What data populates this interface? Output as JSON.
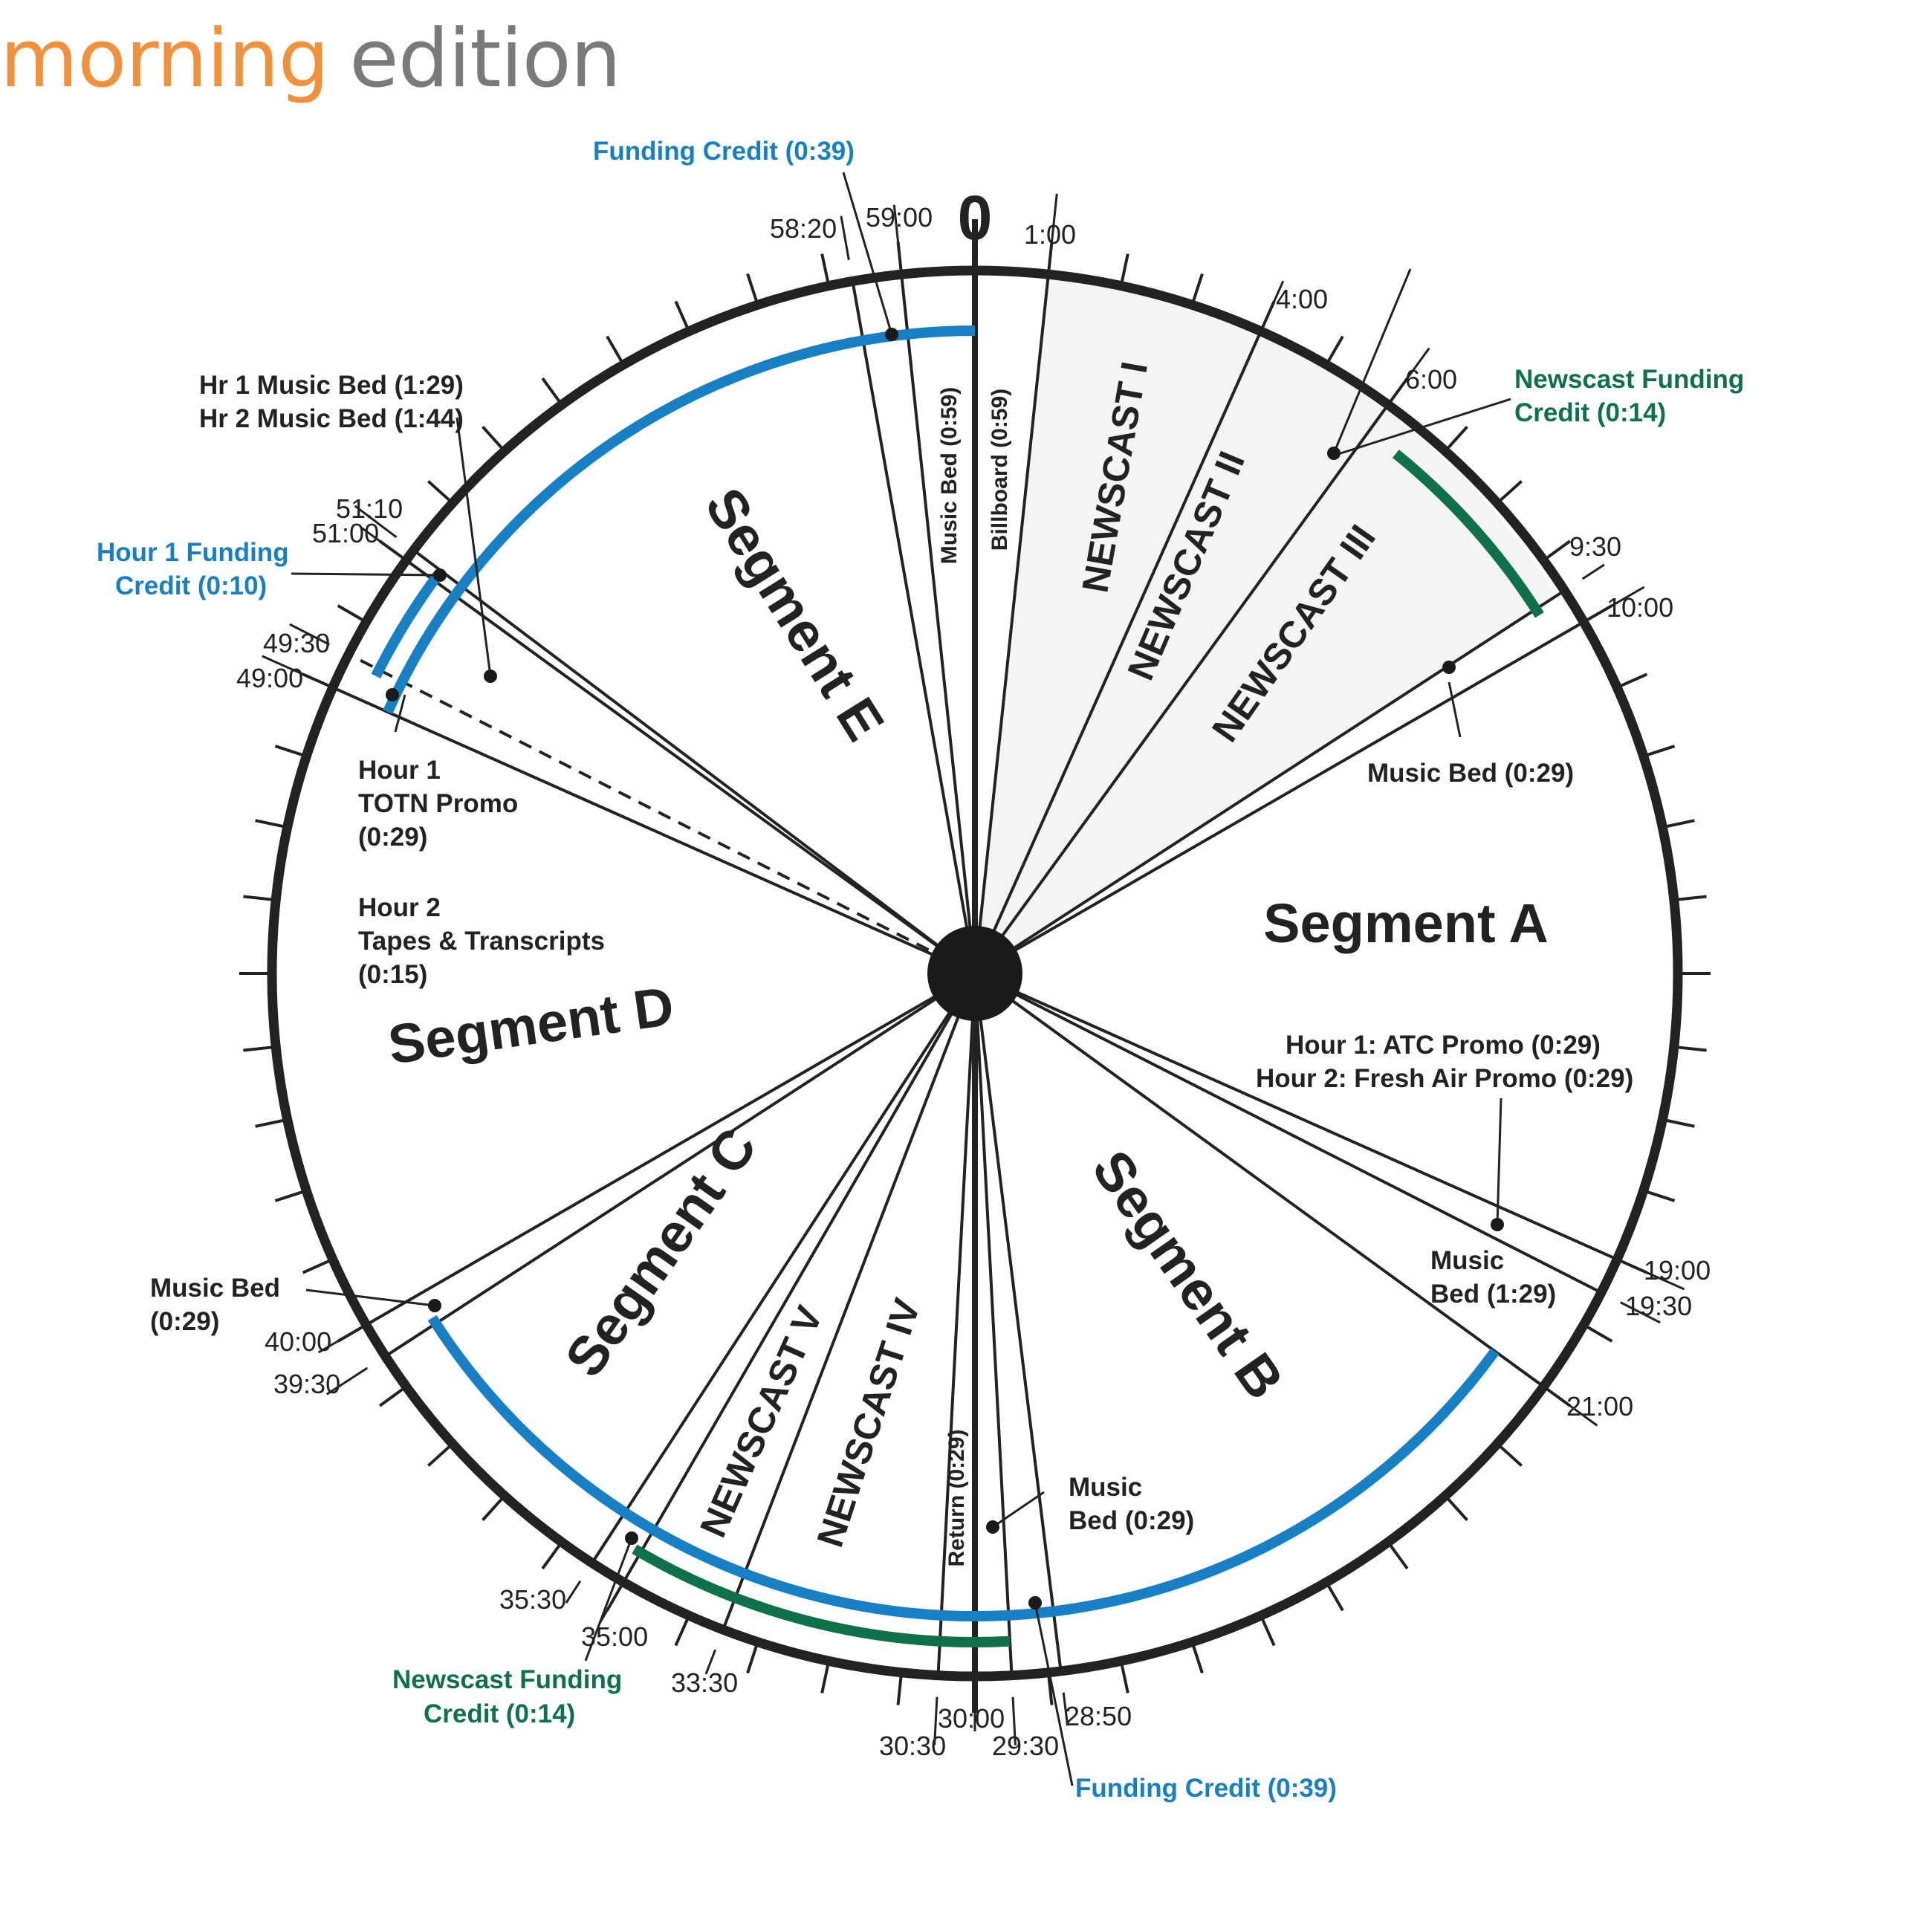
{
  "title": {
    "word1": "morning",
    "word2": "edition"
  },
  "colors": {
    "orange": "#F1913C",
    "gray": "#7A7A7A",
    "blue": "#1780C5",
    "green": "#0E7149",
    "dark": "#222222",
    "shade": "#F4F4F4"
  },
  "zero_label": "0",
  "tick_labels": {
    "t0100": "1:00",
    "t0400": "4:00",
    "t0600": "6:00",
    "t0930": "9:30",
    "t1000": "10:00",
    "t1900": "19:00",
    "t1930": "19:30",
    "t2100": "21:00",
    "t2850": "28:50",
    "t2930": "29:30",
    "t3000": "30:00",
    "t3030": "30:30",
    "t3330": "33:30",
    "t3500": "35:00",
    "t3530": "35:30",
    "t3930": "39:30",
    "t4000": "40:00",
    "t4900": "49:00",
    "t4930": "49:30",
    "t5100": "51:00",
    "t5110": "51:10",
    "t5820": "58:20",
    "t5900": "59:00"
  },
  "segments": {
    "a": "Segment A",
    "b": "Segment  B",
    "c": "Segment C",
    "d": "Segment D",
    "e": "Segment E"
  },
  "newscasts": {
    "n1": "NEWSCAST I",
    "n2": "NEWSCAST II",
    "n3": "NEWSCAST III",
    "n4": "NEWSCAST IV",
    "n5": "NEWSCAST V"
  },
  "vertical_labels": {
    "music_bed_top": "Music Bed (0:59)",
    "billboard": "Billboard (0:59)",
    "return": "Return (0:29)"
  },
  "annotations": {
    "funding_top": "Funding Credit  (0:39)",
    "funding_bottom": "Funding Credit  (0:39)",
    "nfc_top_1": "Newscast Funding",
    "nfc_top_2": "Credit (0:14)",
    "nfc_bottom_1": "Newscast Funding",
    "nfc_bottom_2": "Credit (0:14)",
    "music_bed_a": "Music Bed (0:29)",
    "hr_music_1": "Hr 1 Music Bed (1:29)",
    "hr_music_2": "Hr 2 Music Bed (1:44)",
    "hour1_funding_1": "Hour 1 Funding",
    "hour1_funding_2": "Credit (0:10)",
    "totn_1": "Hour 1",
    "totn_2": "TOTN Promo",
    "totn_3": "(0:29)",
    "tapes_1": "Hour 2",
    "tapes_2": "Tapes & Transcripts",
    "tapes_3": "(0:15)",
    "atc_1": "Hour 1: ATC Promo (0:29)",
    "atc_2": "Hour 2: Fresh Air Promo (0:29)",
    "music_b_1": "Music",
    "music_b_2": "Bed (1:29)",
    "music_c_1": "Music Bed",
    "music_c_2": "(0:29)",
    "music_bot_1": "Music",
    "music_bot_2": "Bed (0:29)"
  }
}
